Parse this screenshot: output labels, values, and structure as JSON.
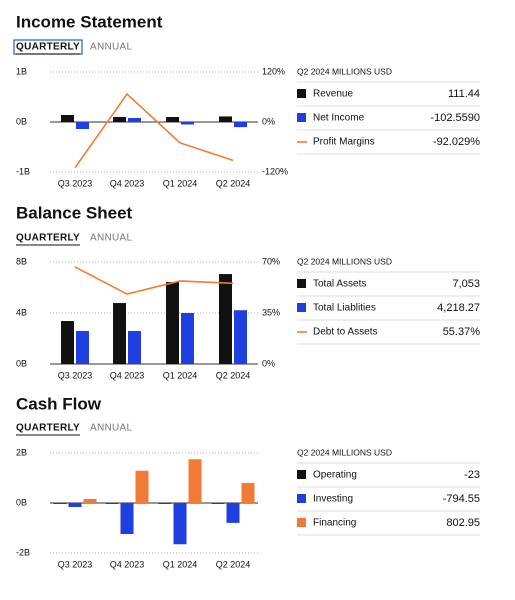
{
  "chart_data": [
    {
      "type": "bar",
      "title": "Income Statement",
      "tabs": [
        "QUARTERLY",
        "ANNUAL"
      ],
      "table_header": "Q2 2024 MILLIONS USD",
      "categories": [
        "Q3 2023",
        "Q4 2023",
        "Q1 2024",
        "Q2 2024"
      ],
      "ylim": [
        -1000,
        1000
      ],
      "yticks": [
        {
          "value": -1000,
          "label": "-1B"
        },
        {
          "value": 0,
          "label": "0B"
        },
        {
          "value": 1000,
          "label": "1B"
        }
      ],
      "y2lim": [
        -120,
        120
      ],
      "y2ticks": [
        {
          "value": -120,
          "label": "-120%"
        },
        {
          "value": 0,
          "label": "0%"
        },
        {
          "value": 120,
          "label": "120%"
        }
      ],
      "series": [
        {
          "name": "Revenue",
          "color": "#111111",
          "values": [
            140,
            100,
            100,
            111.44
          ],
          "value_labels": [
            null,
            null,
            null,
            "111.44"
          ]
        },
        {
          "name": "Net Income",
          "color": "#1f3fe0",
          "values": [
            -140,
            80,
            -50,
            -102.559
          ],
          "value_labels": [
            null,
            null,
            null,
            "-102.5590"
          ]
        },
        {
          "name": "Profit Margins",
          "type": "line",
          "axis": "y2",
          "color": "#f07a36",
          "values": [
            -110,
            67,
            -50,
            -92.029
          ],
          "value_labels": [
            null,
            null,
            null,
            "-92.029%"
          ]
        }
      ]
    },
    {
      "type": "bar",
      "title": "Balance Sheet",
      "tabs": [
        "QUARTERLY",
        "ANNUAL"
      ],
      "table_header": "Q2 2024 MILLIONS USD",
      "categories": [
        "Q3 2023",
        "Q4 2023",
        "Q1 2024",
        "Q2 2024"
      ],
      "ylim": [
        0,
        8000
      ],
      "yticks": [
        {
          "value": 0,
          "label": "0B"
        },
        {
          "value": 4000,
          "label": "4B"
        },
        {
          "value": 8000,
          "label": "8B"
        }
      ],
      "y2lim": [
        0,
        70
      ],
      "y2ticks": [
        {
          "value": 0,
          "label": "0%"
        },
        {
          "value": 35,
          "label": "35%"
        },
        {
          "value": 70,
          "label": "70%"
        }
      ],
      "series": [
        {
          "name": "Total Assets",
          "color": "#111111",
          "values": [
            3370,
            4780,
            6430,
            7053
          ],
          "value_labels": [
            null,
            null,
            null,
            "7,053"
          ]
        },
        {
          "name": "Total Liablities",
          "color": "#1f3fe0",
          "values": [
            2590,
            2590,
            4000,
            4218.27
          ],
          "value_labels": [
            null,
            null,
            null,
            "4,218.27"
          ]
        },
        {
          "name": "Debt to Assets",
          "type": "line",
          "axis": "y2",
          "color": "#f07a36",
          "values": [
            66.6,
            48,
            57,
            55.37
          ],
          "value_labels": [
            null,
            null,
            null,
            "55.37%"
          ]
        }
      ]
    },
    {
      "type": "bar",
      "title": "Cash Flow",
      "tabs": [
        "QUARTERLY",
        "ANNUAL"
      ],
      "table_header": "Q2 2024 MILLIONS USD",
      "categories": [
        "Q3 2023",
        "Q4 2023",
        "Q1 2024",
        "Q2 2024"
      ],
      "ylim": [
        -2000,
        2000
      ],
      "yticks": [
        {
          "value": -2000,
          "label": "-2B"
        },
        {
          "value": 0,
          "label": "0B"
        },
        {
          "value": 2000,
          "label": "2B"
        }
      ],
      "series": [
        {
          "name": "Operating",
          "color": "#111111",
          "values": [
            -20,
            -20,
            -30,
            -23
          ],
          "value_labels": [
            null,
            null,
            null,
            "-23"
          ]
        },
        {
          "name": "Investing",
          "color": "#1f3fe0",
          "values": [
            -160,
            -1240,
            -1650,
            -794.55
          ],
          "value_labels": [
            null,
            null,
            null,
            "-794.55"
          ]
        },
        {
          "name": "Financing",
          "color": "#f07a36",
          "values": [
            160,
            1290,
            1750,
            802.95
          ],
          "value_labels": [
            null,
            null,
            null,
            "802.95"
          ]
        }
      ]
    }
  ]
}
